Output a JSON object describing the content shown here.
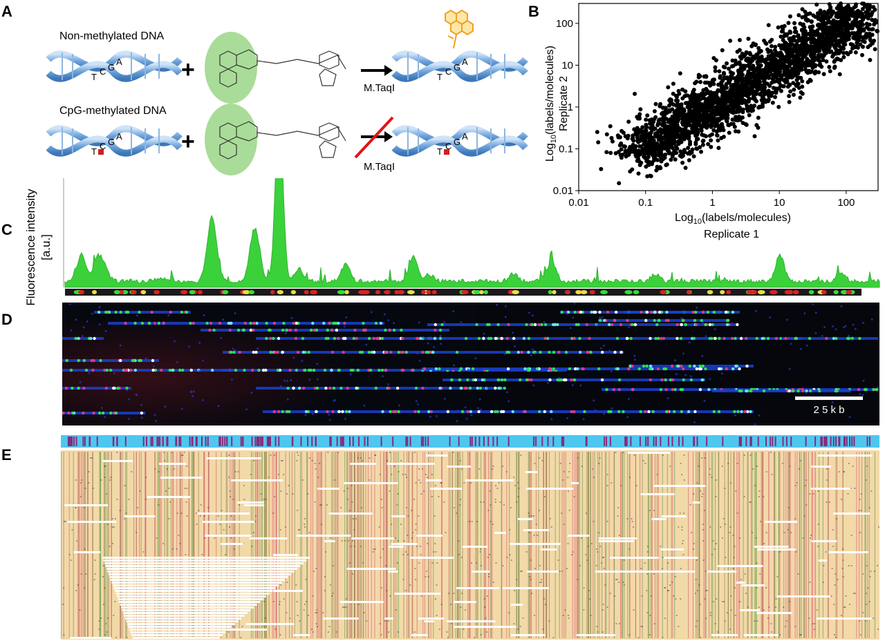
{
  "panels": {
    "a": {
      "letter": "A",
      "row1_label": "Non-methylated DNA",
      "row2_label": "CpG-methylated DNA",
      "enzyme": "M.TaqI",
      "bases": [
        "T",
        "C",
        "G",
        "A"
      ],
      "plus": "+"
    },
    "b": {
      "letter": "B"
    },
    "c": {
      "letter": "C",
      "ylabel_line1": "Fluorescence intensity",
      "ylabel_line2": "[a.u.]"
    },
    "d": {
      "letter": "D",
      "scale_label": "2 5 k b"
    },
    "e": {
      "letter": "E"
    }
  },
  "chart_data": {
    "type": "scatter",
    "xlabel_prefix": "Log",
    "xlabel_sub": "10",
    "xlabel_suffix": "(labels/molecules)",
    "xlabel_line2": "Replicate 1",
    "ylabel_prefix": "Log",
    "ylabel_sub": "10",
    "ylabel_suffix": "(labels/molecules)",
    "ylabel_line2": "Replicate 2",
    "x_scale": "log",
    "y_scale": "log",
    "xlim": [
      0.01,
      300
    ],
    "ylim": [
      0.01,
      300
    ],
    "x_ticks": [
      "0.01",
      "0.1",
      "1",
      "10",
      "100"
    ],
    "y_ticks": [
      "0.01",
      "0.1",
      "1",
      "10",
      "100"
    ],
    "x_tick_values": [
      0.01,
      0.1,
      1,
      10,
      100
    ],
    "y_tick_values": [
      0.01,
      0.1,
      1,
      10,
      100
    ],
    "points": [
      [
        0.1,
        0.12
      ],
      [
        0.12,
        0.09
      ],
      [
        0.15,
        0.2
      ],
      [
        0.2,
        0.15
      ],
      [
        0.25,
        0.3
      ],
      [
        0.3,
        0.22
      ],
      [
        0.4,
        0.5
      ],
      [
        0.5,
        0.35
      ],
      [
        0.6,
        0.7
      ],
      [
        0.7,
        0.5
      ],
      [
        0.8,
        1.0
      ],
      [
        1.0,
        0.8
      ],
      [
        1.2,
        1.5
      ],
      [
        1.5,
        1.1
      ],
      [
        2,
        2.5
      ],
      [
        2.5,
        1.8
      ],
      [
        3,
        3.5
      ],
      [
        4,
        3
      ],
      [
        5,
        6
      ],
      [
        6,
        4.5
      ],
      [
        8,
        9
      ],
      [
        10,
        8
      ],
      [
        12,
        15
      ],
      [
        15,
        11
      ],
      [
        20,
        25
      ],
      [
        25,
        18
      ],
      [
        30,
        35
      ],
      [
        40,
        30
      ],
      [
        50,
        60
      ],
      [
        60,
        45
      ],
      [
        80,
        90
      ],
      [
        100,
        80
      ],
      [
        150,
        170
      ],
      [
        200,
        250
      ],
      [
        0.05,
        0.2
      ],
      [
        0.03,
        0.08
      ],
      [
        0.08,
        0.05
      ],
      [
        0.5,
        2
      ],
      [
        2,
        0.5
      ],
      [
        10,
        30
      ],
      [
        30,
        10
      ],
      [
        0.2,
        0.8
      ],
      [
        0.8,
        0.2
      ],
      [
        5,
        20
      ],
      [
        20,
        5
      ],
      [
        1,
        4
      ],
      [
        4,
        1
      ],
      [
        0.3,
        1.2
      ]
    ]
  }
}
